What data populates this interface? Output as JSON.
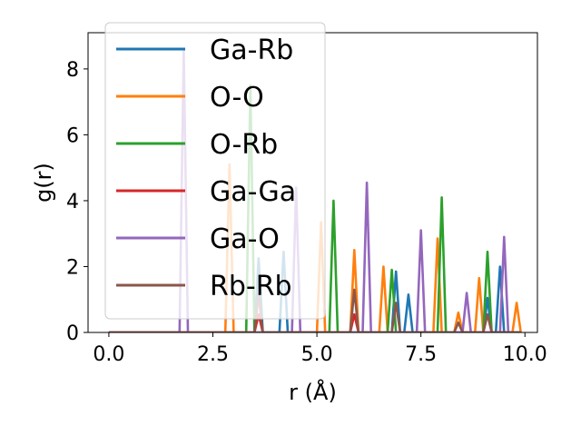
{
  "chart_data": {
    "type": "line",
    "xlabel": "r (Å)",
    "ylabel": "g(r)",
    "xlim": [
      -0.5,
      10.3
    ],
    "ylim": [
      0,
      9.1
    ],
    "xticks": [
      0.0,
      2.5,
      5.0,
      7.5,
      10.0
    ],
    "xtick_labels": [
      "0.0",
      "2.5",
      "5.0",
      "7.5",
      "10.0"
    ],
    "yticks": [
      0,
      2,
      4,
      6,
      8
    ],
    "ytick_labels": [
      "0",
      "2",
      "4",
      "6",
      "8"
    ],
    "grid": false,
    "legend_position": "upper-left",
    "series": [
      {
        "name": "Ga-Rb",
        "color": "#1f77b4",
        "peaks": [
          [
            3.6,
            2.25
          ],
          [
            4.2,
            2.45
          ],
          [
            6.9,
            1.85
          ],
          [
            7.2,
            1.15
          ],
          [
            9.1,
            1.05
          ],
          [
            9.4,
            2.0
          ]
        ]
      },
      {
        "name": "O-O",
        "color": "#ff7f0e",
        "peaks": [
          [
            2.9,
            5.1
          ],
          [
            5.1,
            3.35
          ],
          [
            5.9,
            2.5
          ],
          [
            6.6,
            2.0
          ],
          [
            7.9,
            2.85
          ],
          [
            8.4,
            0.6
          ],
          [
            8.9,
            1.65
          ],
          [
            9.8,
            0.9
          ]
        ]
      },
      {
        "name": "O-Rb",
        "color": "#2ca02c",
        "peaks": [
          [
            3.4,
            7.5
          ],
          [
            5.4,
            4.0
          ],
          [
            6.8,
            1.9
          ],
          [
            8.0,
            4.1
          ],
          [
            9.1,
            2.45
          ]
        ]
      },
      {
        "name": "Ga-Ga",
        "color": "#d62728",
        "peaks": [
          [
            3.6,
            0.55
          ],
          [
            5.9,
            0.55
          ]
        ]
      },
      {
        "name": "Ga-O",
        "color": "#9467bd",
        "peaks": [
          [
            1.8,
            8.6
          ],
          [
            4.5,
            4.4
          ],
          [
            6.2,
            4.55
          ],
          [
            7.5,
            3.1
          ],
          [
            8.6,
            1.2
          ],
          [
            9.5,
            2.9
          ]
        ]
      },
      {
        "name": "Rb-Rb",
        "color": "#8c564b",
        "peaks": [
          [
            3.6,
            1.15
          ],
          [
            5.9,
            1.3
          ],
          [
            6.9,
            0.9
          ],
          [
            8.4,
            0.3
          ],
          [
            9.1,
            0.55
          ]
        ]
      }
    ]
  }
}
